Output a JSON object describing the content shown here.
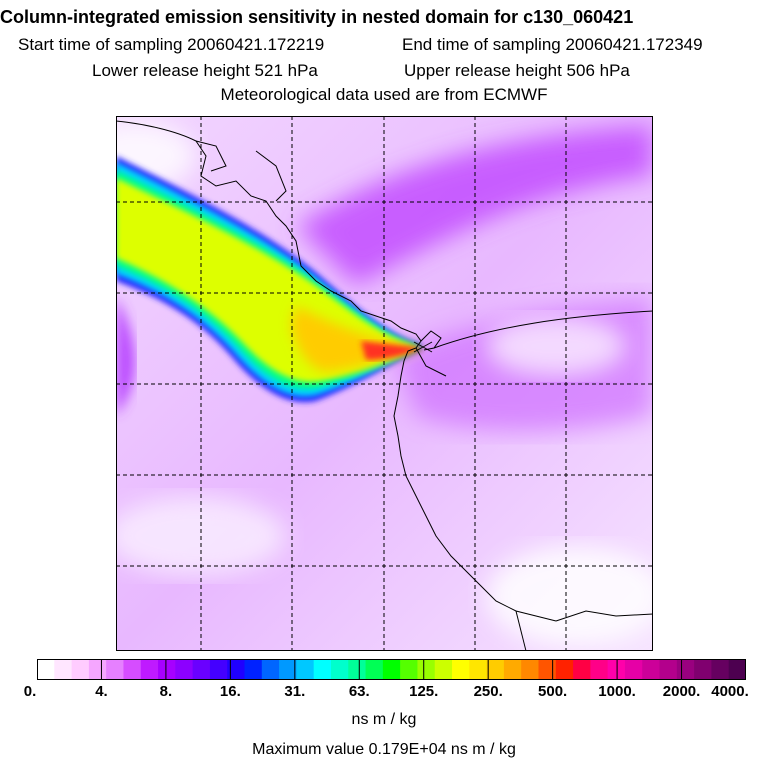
{
  "header": {
    "title": "Column-integrated emission sensitivity in nested domain for c130_060421",
    "start_time": "Start time of sampling 20060421.172219",
    "end_time": "End time of sampling 20060421.172349",
    "lower_height": "Lower release height  521 hPa",
    "upper_height": "Upper release height  506 hPa",
    "met_data": "Meteorological data used are from ECMWF"
  },
  "colorbar": {
    "tick_labels": [
      "0.",
      "4.",
      "8.",
      "16.",
      "31.",
      "63.",
      "125.",
      "250.",
      "500.",
      "1000.",
      "2000.",
      "4000."
    ],
    "colors": [
      "#ffffff",
      "#ffe6ff",
      "#ffccff",
      "#f5a6ff",
      "#e680ff",
      "#d64dff",
      "#bf1aff",
      "#a600ff",
      "#8c00ff",
      "#6a00ff",
      "#4400ff",
      "#2000ff",
      "#0022ff",
      "#0066ff",
      "#0099ff",
      "#00c8ff",
      "#00ffff",
      "#00ffcc",
      "#00ff99",
      "#00ff55",
      "#00ff00",
      "#55ff00",
      "#99ff00",
      "#ccff00",
      "#ffff00",
      "#ffe600",
      "#ffcc00",
      "#ffaa00",
      "#ff8800",
      "#ff5500",
      "#ff2200",
      "#ff0044",
      "#ff0088",
      "#ff00aa",
      "#e600a6",
      "#cc0099",
      "#b3008c",
      "#99007f",
      "#80006f",
      "#660060",
      "#4d0050"
    ]
  },
  "units": "ns m / kg",
  "max_value": "Maximum value  0.179E+04 ns m / kg"
}
